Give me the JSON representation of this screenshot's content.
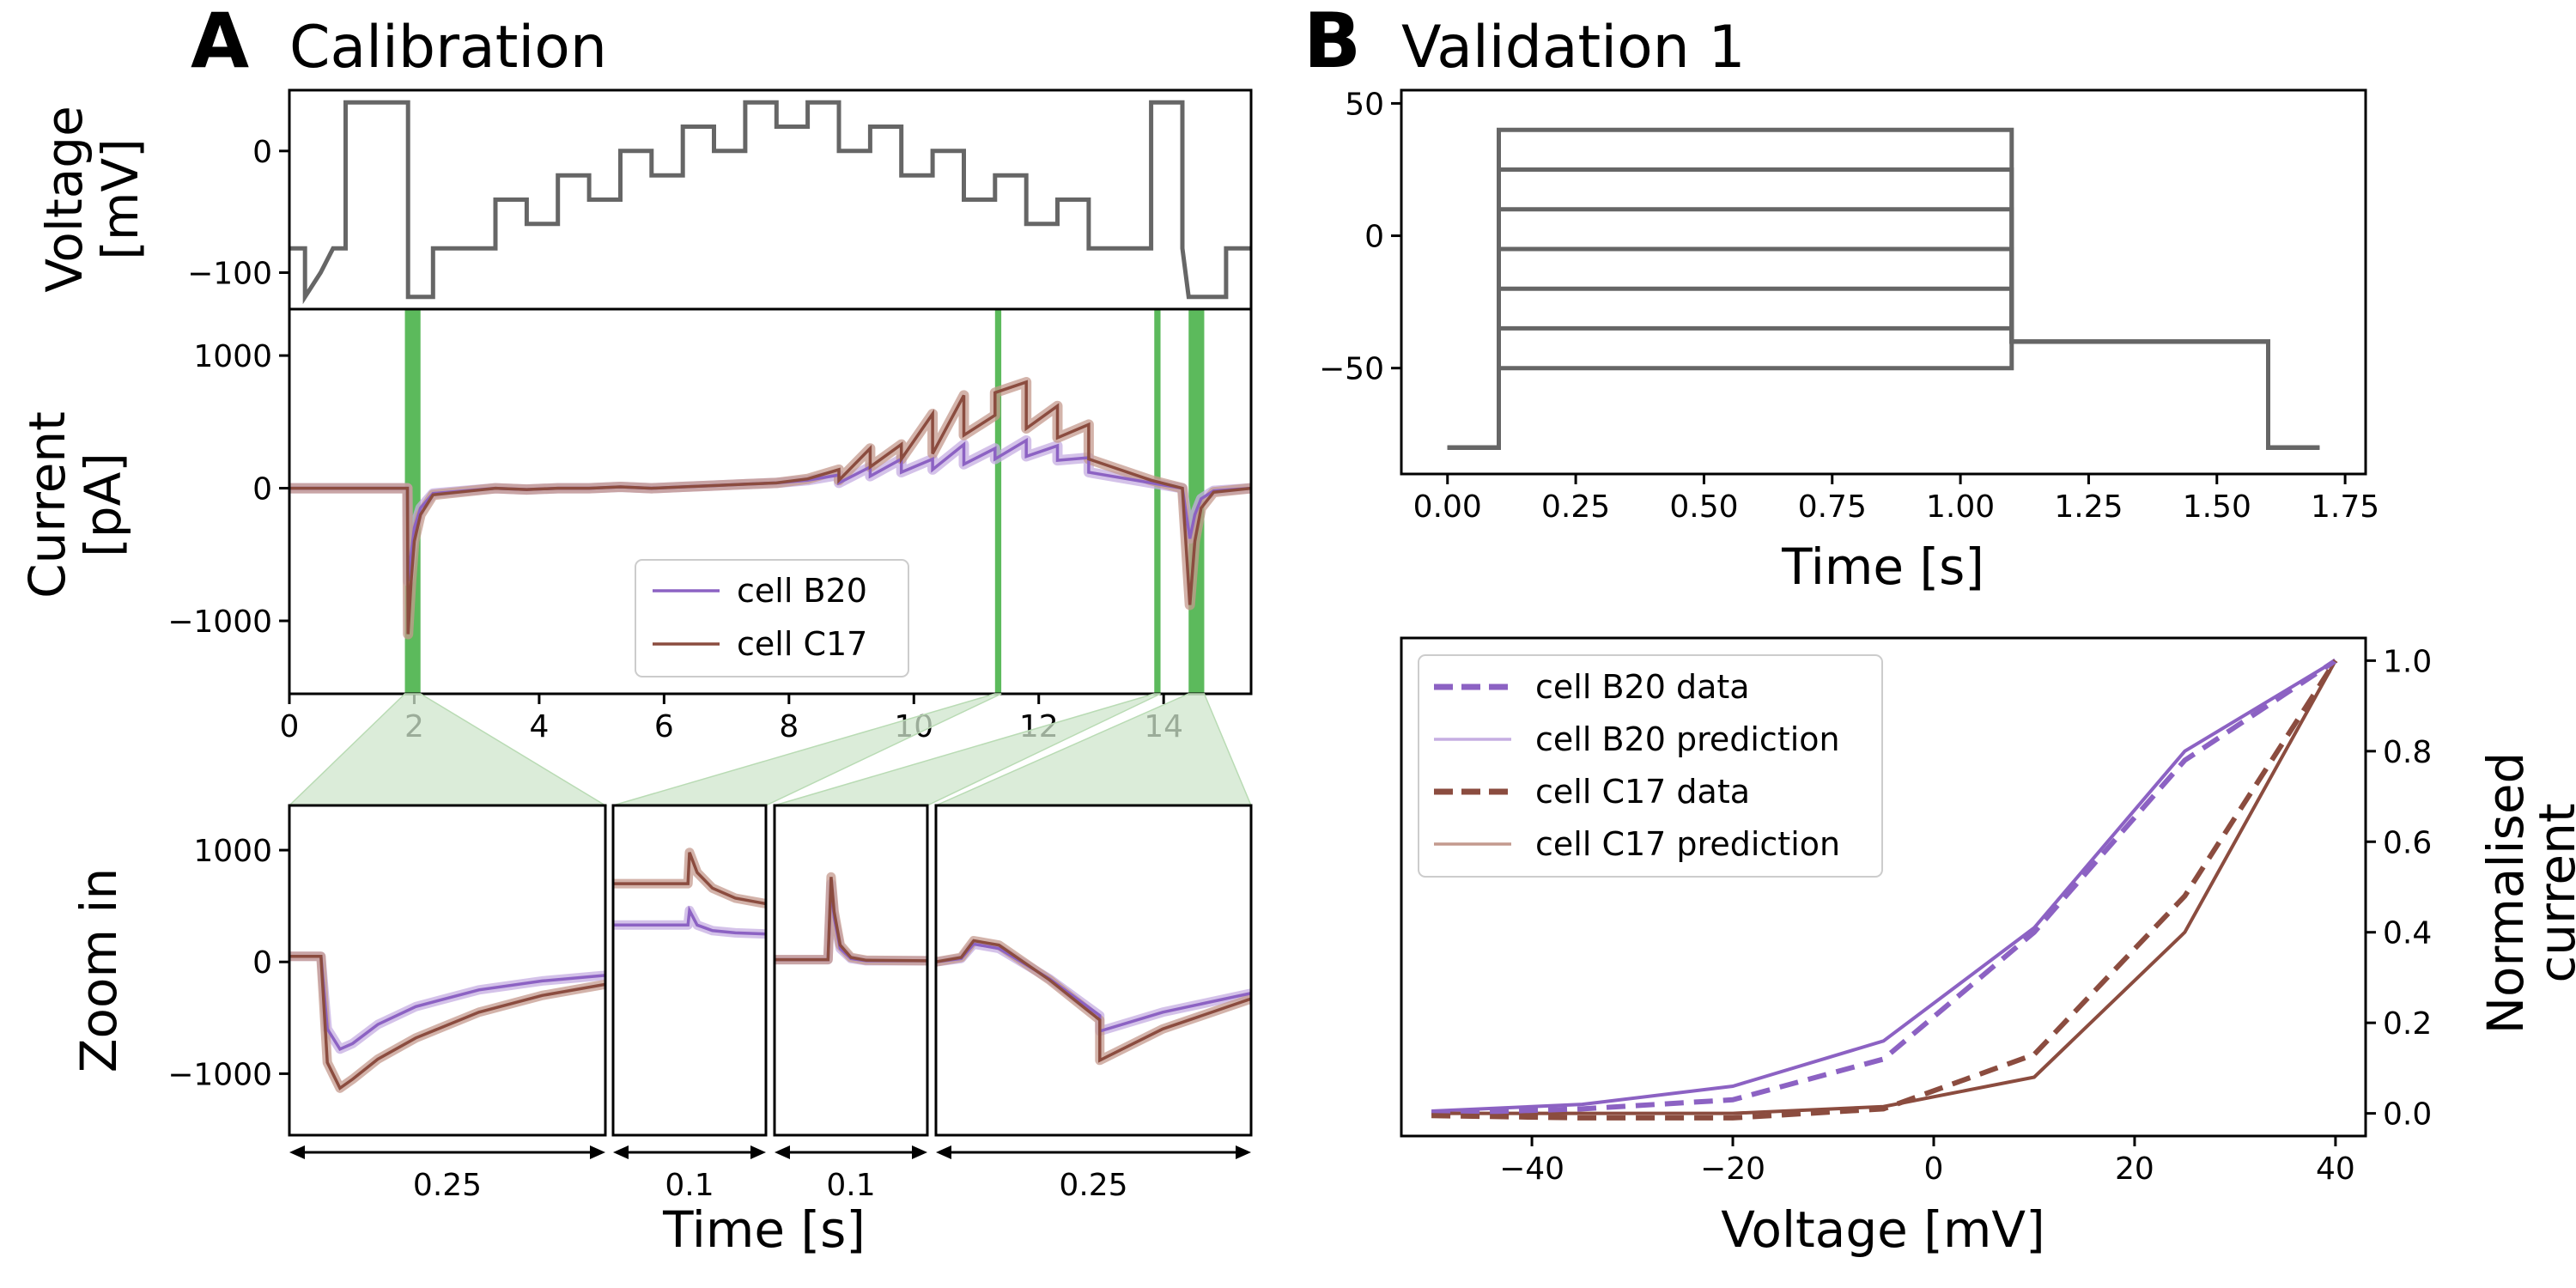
{
  "panelA": {
    "letter": "A",
    "title": "Calibration",
    "voltage_ylabel_line1": "Voltage",
    "voltage_ylabel_line2": "[mV]",
    "current_ylabel_line1": "Current",
    "current_ylabel_line2": "[pA]",
    "zoom_ylabel": "Zoom in",
    "xlabel": "Time [s]",
    "zoom_scalebars": [
      "0.25",
      "0.1",
      "0.1",
      "0.25"
    ],
    "legend": [
      "cell B20",
      "cell C17"
    ]
  },
  "panelB": {
    "letter": "B",
    "title": "Validation 1",
    "protocol_xlabel": "Time [s]",
    "iv_xlabel": "Voltage [mV]",
    "iv_ylabel_line1": "Normalised",
    "iv_ylabel_line2": "current",
    "legend": [
      "cell B20 data",
      "cell B20 prediction",
      "cell C17 data",
      "cell C17 prediction"
    ]
  },
  "colors": {
    "b20": "#8c62c3",
    "b20_light": "#c5aee2",
    "c17": "#8b4c3f",
    "c17_light": "#c49a8e",
    "protocol": "#666666",
    "highlight": "#3fae3f",
    "zoom_fill": "#cfe6cc"
  },
  "chart_data": [
    {
      "id": "voltage-protocol",
      "type": "line",
      "xlim": [
        0,
        15.4
      ],
      "ylim": [
        -130,
        50
      ],
      "yticks": [
        -100,
        0
      ],
      "series": [
        {
          "x": [
            0,
            0.25,
            0.25,
            0.5,
            0.7,
            0.9,
            0.9,
            1.9,
            1.9,
            2.3,
            2.3,
            3.3,
            3.3,
            3.8,
            3.8,
            4.3,
            4.3,
            4.8,
            4.8,
            5.3,
            5.3,
            5.8,
            5.8,
            6.3,
            6.3,
            6.8,
            6.8,
            7.3,
            7.3,
            7.8,
            7.8,
            8.3,
            8.3,
            8.8,
            8.8,
            9.3,
            9.3,
            9.8,
            9.8,
            10.3,
            10.3,
            10.8,
            10.8,
            11.3,
            11.3,
            11.8,
            11.8,
            12.3,
            12.3,
            12.8,
            12.8,
            13.8,
            13.8,
            14.3,
            14.3,
            14.4,
            14.6,
            14.6,
            15.0,
            15.0,
            15.4
          ],
          "y": [
            -80,
            -80,
            -120,
            -100,
            -80,
            -80,
            40,
            40,
            -120,
            -120,
            -80,
            -80,
            -40,
            -40,
            -60,
            -60,
            -20,
            -20,
            -40,
            -40,
            0,
            0,
            -20,
            -20,
            20,
            20,
            0,
            0,
            40,
            40,
            20,
            20,
            40,
            40,
            0,
            0,
            20,
            20,
            -20,
            -20,
            0,
            0,
            -40,
            -40,
            -20,
            -20,
            -60,
            -60,
            -40,
            -40,
            -80,
            -80,
            40,
            40,
            -80,
            -120,
            -120,
            -120,
            -120,
            -80,
            -80
          ]
        }
      ]
    },
    {
      "id": "calibration-current",
      "type": "line",
      "xlim": [
        0,
        15.4
      ],
      "ylim": [
        -1550,
        1350
      ],
      "xticks": [
        0,
        2,
        4,
        6,
        8,
        10,
        12,
        14
      ],
      "yticks": [
        -1000,
        0,
        1000
      ],
      "highlight_windows_s": [
        [
          1.85,
          2.1
        ],
        [
          11.3,
          11.4
        ],
        [
          13.85,
          13.95
        ],
        [
          14.4,
          14.65
        ]
      ],
      "series": [
        {
          "name": "cell B20",
          "x": [
            0,
            1.89,
            1.9,
            1.95,
            2.0,
            2.1,
            2.3,
            3.3,
            3.8,
            4.3,
            4.8,
            5.3,
            5.8,
            6.3,
            6.8,
            7.3,
            7.8,
            8.3,
            8.8,
            8.8,
            9.3,
            9.3,
            9.8,
            9.8,
            10.3,
            10.3,
            10.8,
            10.8,
            11.3,
            11.3,
            11.8,
            11.8,
            12.3,
            12.3,
            12.8,
            12.8,
            13.8,
            14.3,
            14.42,
            14.5,
            14.6,
            14.8,
            15.4
          ],
          "y": [
            0,
            0,
            -700,
            -500,
            -300,
            -150,
            -40,
            0,
            -10,
            0,
            0,
            10,
            0,
            10,
            20,
            30,
            40,
            60,
            100,
            40,
            160,
            90,
            220,
            120,
            220,
            140,
            330,
            180,
            300,
            220,
            360,
            240,
            320,
            210,
            230,
            120,
            40,
            0,
            -380,
            -200,
            -80,
            -20,
            0
          ]
        },
        {
          "name": "cell C17",
          "x": [
            0,
            1.89,
            1.9,
            1.95,
            2.0,
            2.1,
            2.3,
            3.3,
            3.8,
            4.3,
            4.8,
            5.3,
            5.8,
            6.3,
            6.8,
            7.3,
            7.8,
            8.3,
            8.8,
            8.8,
            9.3,
            9.3,
            9.8,
            9.8,
            10.3,
            10.3,
            10.8,
            10.8,
            11.3,
            11.3,
            11.8,
            11.8,
            12.3,
            12.3,
            12.8,
            12.8,
            13.8,
            14.3,
            14.42,
            14.5,
            14.6,
            14.8,
            15.4
          ],
          "y": [
            0,
            0,
            -1100,
            -700,
            -400,
            -200,
            -50,
            0,
            -10,
            0,
            0,
            10,
            0,
            10,
            20,
            30,
            40,
            70,
            140,
            60,
            300,
            160,
            330,
            220,
            560,
            260,
            700,
            400,
            550,
            720,
            800,
            450,
            620,
            380,
            480,
            220,
            60,
            0,
            -880,
            -400,
            -150,
            -30,
            0
          ]
        }
      ]
    },
    {
      "id": "zoom-1",
      "type": "line",
      "xlim": [
        0,
        0.25
      ],
      "ylim": [
        -1550,
        1400
      ],
      "yticks": [
        -1000,
        0,
        1000
      ],
      "series": [
        {
          "name": "cell B20",
          "x": [
            0,
            0.025,
            0.03,
            0.04,
            0.05,
            0.07,
            0.1,
            0.15,
            0.2,
            0.25
          ],
          "y": [
            50,
            50,
            -600,
            -780,
            -730,
            -560,
            -400,
            -250,
            -170,
            -120
          ]
        },
        {
          "name": "cell C17",
          "x": [
            0,
            0.025,
            0.03,
            0.04,
            0.05,
            0.07,
            0.1,
            0.15,
            0.2,
            0.25
          ],
          "y": [
            50,
            50,
            -900,
            -1130,
            -1050,
            -870,
            -680,
            -450,
            -300,
            -200
          ]
        }
      ]
    },
    {
      "id": "zoom-2",
      "type": "line",
      "xlim": [
        0,
        0.1
      ],
      "ylim": [
        -1550,
        1400
      ],
      "series": [
        {
          "name": "cell B20",
          "x": [
            0,
            0.049,
            0.05,
            0.055,
            0.065,
            0.08,
            0.1
          ],
          "y": [
            330,
            330,
            460,
            330,
            280,
            260,
            250
          ]
        },
        {
          "name": "cell C17",
          "x": [
            0,
            0.049,
            0.05,
            0.055,
            0.065,
            0.08,
            0.1
          ],
          "y": [
            700,
            700,
            980,
            800,
            660,
            570,
            520
          ]
        }
      ]
    },
    {
      "id": "zoom-3",
      "type": "line",
      "xlim": [
        0,
        0.1
      ],
      "ylim": [
        -1550,
        1400
      ],
      "series": [
        {
          "name": "cell B20",
          "x": [
            0,
            0.035,
            0.037,
            0.039,
            0.043,
            0.05,
            0.06,
            0.1
          ],
          "y": [
            20,
            20,
            700,
            400,
            120,
            30,
            10,
            10
          ]
        },
        {
          "name": "cell C17",
          "x": [
            0,
            0.035,
            0.037,
            0.039,
            0.043,
            0.05,
            0.06,
            0.1
          ],
          "y": [
            20,
            20,
            760,
            450,
            150,
            40,
            15,
            10
          ]
        }
      ]
    },
    {
      "id": "zoom-4",
      "type": "line",
      "xlim": [
        0,
        0.25
      ],
      "ylim": [
        -1550,
        1400
      ],
      "series": [
        {
          "name": "cell B20",
          "x": [
            0,
            0.02,
            0.03,
            0.05,
            0.09,
            0.13,
            0.13,
            0.18,
            0.25
          ],
          "y": [
            0,
            30,
            160,
            120,
            -150,
            -480,
            -620,
            -450,
            -280
          ]
        },
        {
          "name": "cell C17",
          "x": [
            0,
            0.02,
            0.03,
            0.05,
            0.09,
            0.13,
            0.13,
            0.18,
            0.25
          ],
          "y": [
            0,
            40,
            190,
            150,
            -160,
            -520,
            -880,
            -600,
            -330
          ]
        }
      ]
    },
    {
      "id": "validation-protocol",
      "type": "line",
      "xlim": [
        -0.09,
        1.79
      ],
      "ylim": [
        -90,
        55
      ],
      "xticks": [
        0.0,
        0.25,
        0.5,
        0.75,
        1.0,
        1.25,
        1.5,
        1.75
      ],
      "xtick_labels": [
        "0.00",
        "0.25",
        "0.50",
        "0.75",
        "1.00",
        "1.25",
        "1.50",
        "1.75"
      ],
      "yticks": [
        -50,
        0,
        50
      ],
      "steps_mV": [
        -50,
        -35,
        -20,
        -5,
        10,
        25,
        40
      ],
      "holding_mV": -80,
      "step_window_s": [
        0.1,
        1.1
      ],
      "tail_mV": -40,
      "tail_end_s": 1.6,
      "end_s": 1.7
    },
    {
      "id": "iv-curve",
      "type": "line",
      "xlim": [
        -53,
        43
      ],
      "ylim": [
        -0.05,
        1.05
      ],
      "xticks": [
        -40,
        -20,
        0,
        20,
        40
      ],
      "yticks": [
        0.0,
        0.2,
        0.4,
        0.6,
        0.8,
        1.0
      ],
      "yaxis_side": "right",
      "x": [
        -50,
        -35,
        -20,
        -5,
        10,
        25,
        40
      ],
      "series": [
        {
          "name": "cell B20 data",
          "style": "dashed",
          "y": [
            0.0,
            0.01,
            0.03,
            0.12,
            0.4,
            0.78,
            1.0
          ]
        },
        {
          "name": "cell B20 prediction",
          "style": "solid",
          "y": [
            0.005,
            0.02,
            0.06,
            0.16,
            0.41,
            0.8,
            1.0
          ]
        },
        {
          "name": "cell C17 data",
          "style": "dashed",
          "y": [
            -0.005,
            -0.01,
            -0.01,
            0.01,
            0.13,
            0.48,
            1.0
          ]
        },
        {
          "name": "cell C17 prediction",
          "style": "solid",
          "y": [
            0.0,
            0.0,
            0.0,
            0.015,
            0.08,
            0.4,
            1.0
          ]
        }
      ]
    }
  ]
}
